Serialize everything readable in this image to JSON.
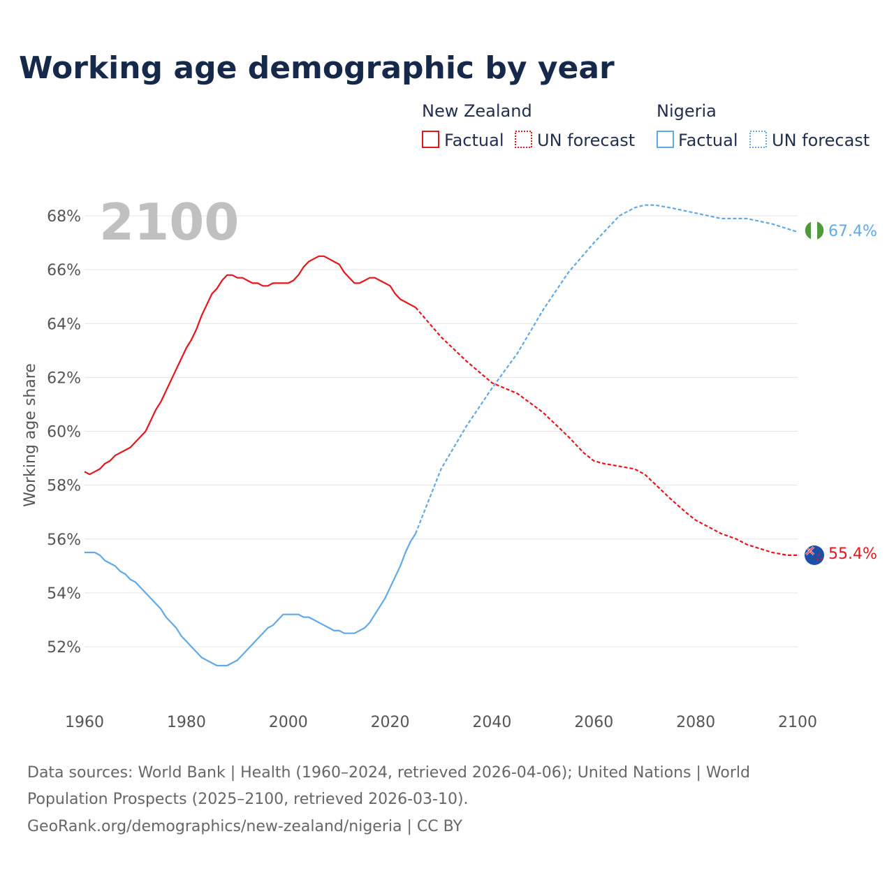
{
  "header": {
    "title": "Working age demographic by year"
  },
  "legend": {
    "groups": [
      {
        "name": "New Zealand",
        "factual_label": "Factual",
        "forecast_label": "UN forecast",
        "color": "#e8141c"
      },
      {
        "name": "Nigeria",
        "factual_label": "Factual",
        "forecast_label": "UN forecast",
        "color": "#62a8e6"
      }
    ]
  },
  "year_overlay": "2100",
  "end_labels": {
    "new_zealand": "55.4%",
    "nigeria": "67.4%"
  },
  "colors": {
    "new_zealand": "#e8141c",
    "nigeria": "#62a8e6",
    "title": "#16294a",
    "grid": "#e3e3e3",
    "overlay": "#c0c0c0",
    "nigeria_flag_green": "#4f9a3c",
    "nz_flag_blue": "#1d4fa8"
  },
  "icons": {
    "nigeria_marker": "nigeria-flag-icon",
    "new_zealand_marker": "new-zealand-flag-icon"
  },
  "footer": {
    "line1": "Data sources: World Bank | Health (1960–2024, retrieved 2026-04-06); United Nations | World",
    "line2": "Population Prospects (2025–2100, retrieved 2026-03-10).",
    "line3": "GeoRank.org/demographics/new-zealand/nigeria | CC BY"
  },
  "chart_data": {
    "type": "line",
    "title": "Working age demographic by year",
    "xlabel": "",
    "ylabel": "Working age share",
    "xlim": [
      1960,
      2100
    ],
    "ylim": [
      50,
      69
    ],
    "x_ticks": [
      1960,
      1980,
      2000,
      2020,
      2040,
      2060,
      2080,
      2100
    ],
    "x_tick_labels": [
      "1960",
      "1980",
      "2000",
      "2020",
      "2040",
      "2060",
      "2080",
      "2100"
    ],
    "y_ticks": [
      52,
      54,
      56,
      58,
      60,
      62,
      64,
      66,
      68
    ],
    "y_tick_labels": [
      "52%",
      "54%",
      "56%",
      "58%",
      "60%",
      "62%",
      "64%",
      "66%",
      "68%"
    ],
    "grid": true,
    "legend_position": "top-right",
    "series": [
      {
        "name": "New Zealand",
        "color": "#e8141c",
        "factual": {
          "x": [
            1960,
            1961,
            1962,
            1963,
            1964,
            1965,
            1966,
            1967,
            1968,
            1969,
            1970,
            1971,
            1972,
            1973,
            1974,
            1975,
            1976,
            1977,
            1978,
            1979,
            1980,
            1981,
            1982,
            1983,
            1984,
            1985,
            1986,
            1987,
            1988,
            1989,
            1990,
            1991,
            1992,
            1993,
            1994,
            1995,
            1996,
            1997,
            1998,
            1999,
            2000,
            2001,
            2002,
            2003,
            2004,
            2005,
            2006,
            2007,
            2008,
            2009,
            2010,
            2011,
            2012,
            2013,
            2014,
            2015,
            2016,
            2017,
            2018,
            2019,
            2020,
            2021,
            2022,
            2023,
            2024,
            2025
          ],
          "y": [
            58.5,
            58.4,
            58.5,
            58.6,
            58.8,
            58.9,
            59.1,
            59.2,
            59.3,
            59.4,
            59.6,
            59.8,
            60.0,
            60.4,
            60.8,
            61.1,
            61.5,
            61.9,
            62.3,
            62.7,
            63.1,
            63.4,
            63.8,
            64.3,
            64.7,
            65.1,
            65.3,
            65.6,
            65.8,
            65.8,
            65.7,
            65.7,
            65.6,
            65.5,
            65.5,
            65.4,
            65.4,
            65.5,
            65.5,
            65.5,
            65.5,
            65.6,
            65.8,
            66.1,
            66.3,
            66.4,
            66.5,
            66.5,
            66.4,
            66.3,
            66.2,
            65.9,
            65.7,
            65.5,
            65.5,
            65.6,
            65.7,
            65.7,
            65.6,
            65.5,
            65.4,
            65.1,
            64.9,
            64.8,
            64.7,
            64.6
          ]
        },
        "forecast": {
          "x": [
            2025,
            2030,
            2035,
            2040,
            2045,
            2050,
            2055,
            2058,
            2060,
            2062,
            2065,
            2068,
            2070,
            2075,
            2078,
            2080,
            2085,
            2088,
            2090,
            2095,
            2098,
            2100
          ],
          "y": [
            64.6,
            63.5,
            62.6,
            61.8,
            61.4,
            60.7,
            59.8,
            59.2,
            58.9,
            58.8,
            58.7,
            58.6,
            58.4,
            57.5,
            57.0,
            56.7,
            56.2,
            56.0,
            55.8,
            55.5,
            55.4,
            55.4
          ]
        },
        "end_value": 55.4
      },
      {
        "name": "Nigeria",
        "color": "#62a8e6",
        "factual": {
          "x": [
            1960,
            1961,
            1962,
            1963,
            1964,
            1965,
            1966,
            1967,
            1968,
            1969,
            1970,
            1971,
            1972,
            1973,
            1974,
            1975,
            1976,
            1977,
            1978,
            1979,
            1980,
            1981,
            1982,
            1983,
            1984,
            1985,
            1986,
            1987,
            1988,
            1989,
            1990,
            1991,
            1992,
            1993,
            1994,
            1995,
            1996,
            1997,
            1998,
            1999,
            2000,
            2001,
            2002,
            2003,
            2004,
            2005,
            2006,
            2007,
            2008,
            2009,
            2010,
            2011,
            2012,
            2013,
            2014,
            2015,
            2016,
            2017,
            2018,
            2019,
            2020,
            2021,
            2022,
            2023,
            2024,
            2025
          ],
          "y": [
            55.5,
            55.5,
            55.5,
            55.4,
            55.2,
            55.1,
            55.0,
            54.8,
            54.7,
            54.5,
            54.4,
            54.2,
            54.0,
            53.8,
            53.6,
            53.4,
            53.1,
            52.9,
            52.7,
            52.4,
            52.2,
            52.0,
            51.8,
            51.6,
            51.5,
            51.4,
            51.3,
            51.3,
            51.3,
            51.4,
            51.5,
            51.7,
            51.9,
            52.1,
            52.3,
            52.5,
            52.7,
            52.8,
            53.0,
            53.2,
            53.2,
            53.2,
            53.2,
            53.1,
            53.1,
            53.0,
            52.9,
            52.8,
            52.7,
            52.6,
            52.6,
            52.5,
            52.5,
            52.5,
            52.6,
            52.7,
            52.9,
            53.2,
            53.5,
            53.8,
            54.2,
            54.6,
            55.0,
            55.5,
            55.9,
            56.2
          ]
        },
        "forecast": {
          "x": [
            2025,
            2030,
            2035,
            2040,
            2045,
            2050,
            2055,
            2060,
            2063,
            2065,
            2068,
            2070,
            2072,
            2075,
            2080,
            2085,
            2090,
            2095,
            2100
          ],
          "y": [
            56.2,
            58.6,
            60.2,
            61.6,
            62.9,
            64.5,
            65.9,
            67.0,
            67.6,
            68.0,
            68.3,
            68.4,
            68.4,
            68.3,
            68.1,
            67.9,
            67.9,
            67.7,
            67.4
          ]
        },
        "end_value": 67.4
      }
    ]
  }
}
